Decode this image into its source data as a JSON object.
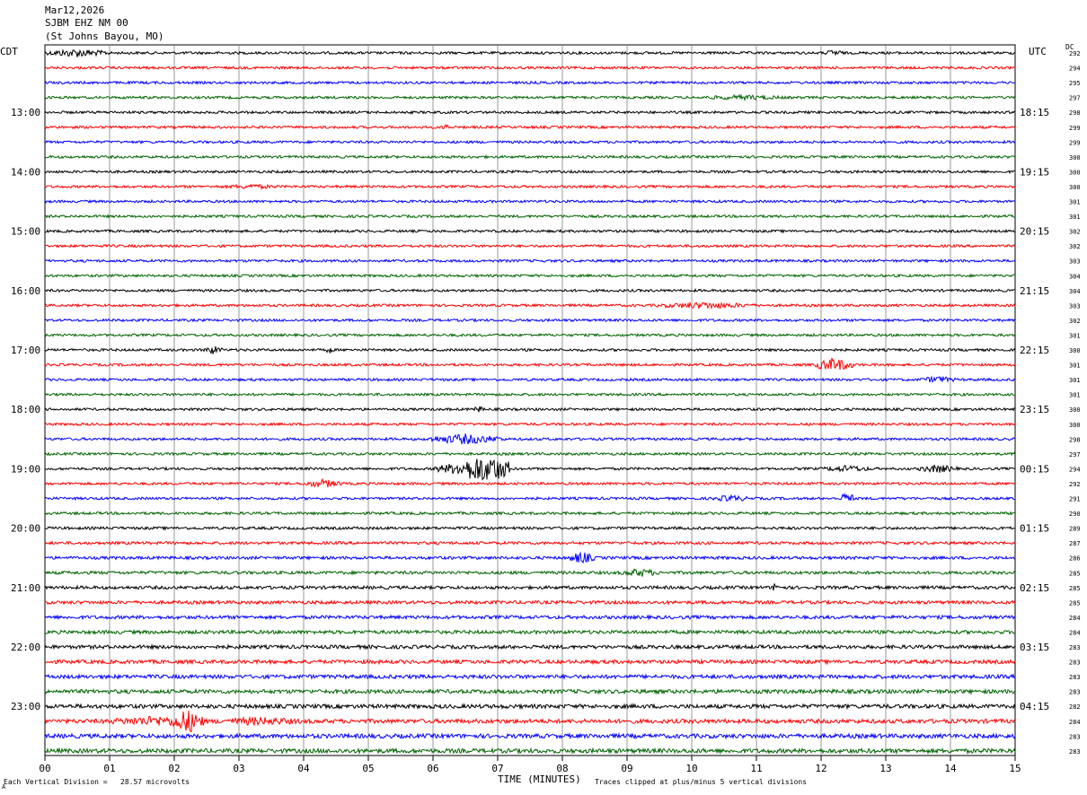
{
  "header": {
    "line1": "Mar12,2026",
    "line2": "SJBM EHZ NM 00",
    "line3": "(St Johns Bayou, MO)"
  },
  "left_axis_label": "CDT",
  "right_axis_label": "UTC",
  "dc_label": "DC",
  "footer": {
    "scale_note": "Each Vertical Division =   28.57 microvolts",
    "xlabel": "TIME (MINUTES)",
    "clip_note": "Traces clipped at plus/minus 5 vertical divisions",
    "mark": "A"
  },
  "colors": {
    "trace_cycle": [
      "#000000",
      "#ff0000",
      "#0000ff",
      "#006400"
    ],
    "grid": "#808080"
  },
  "chart_data": {
    "type": "line",
    "title": "",
    "xlabel": "TIME (MINUTES)",
    "xlim": [
      0,
      15
    ],
    "x_tick_labels": [
      "00",
      "01",
      "02",
      "03",
      "04",
      "05",
      "06",
      "07",
      "08",
      "09",
      "10",
      "11",
      "12",
      "13",
      "14",
      "15"
    ],
    "trace_count": 48,
    "trace_interval_minutes": 15,
    "left_hour_labels": [
      "13:00",
      "14:00",
      "15:00",
      "16:00",
      "17:00",
      "18:00",
      "19:00",
      "20:00",
      "21:00",
      "22:00",
      "23:00"
    ],
    "right_hour_labels": [
      "18:15",
      "19:15",
      "20:15",
      "21:15",
      "22:15",
      "23:15",
      "00:15",
      "01:15",
      "02:15",
      "03:15",
      "04:15"
    ],
    "dc_offsets": [
      "292",
      "294",
      "295",
      "297",
      "298",
      "299",
      "299",
      "300",
      "300",
      "300",
      "301",
      "301",
      "302",
      "302",
      "303",
      "304",
      "304",
      "303",
      "302",
      "301",
      "300",
      "301",
      "301",
      "301",
      "300",
      "300",
      "298",
      "297",
      "294",
      "292",
      "291",
      "290",
      "289",
      "287",
      "286",
      "285",
      "285",
      "285",
      "284",
      "284",
      "283",
      "283",
      "283",
      "283",
      "282",
      "284",
      "283",
      "283"
    ],
    "events": [
      {
        "trace": 0,
        "minute": 0.5,
        "width": 0.5,
        "amp": 5
      },
      {
        "trace": 0,
        "minute": 12.2,
        "width": 0.15,
        "amp": 4
      },
      {
        "trace": 3,
        "minute": 10.8,
        "width": 0.8,
        "amp": 3
      },
      {
        "trace": 5,
        "minute": 6.2,
        "width": 0.05,
        "amp": 5
      },
      {
        "trace": 9,
        "minute": 3.2,
        "width": 0.5,
        "amp": 3
      },
      {
        "trace": 17,
        "minute": 10.2,
        "width": 0.8,
        "amp": 4
      },
      {
        "trace": 20,
        "minute": 2.6,
        "width": 0.15,
        "amp": 5
      },
      {
        "trace": 20,
        "minute": 4.4,
        "width": 0.05,
        "amp": 5
      },
      {
        "trace": 21,
        "minute": 12.2,
        "width": 0.3,
        "amp": 8
      },
      {
        "trace": 22,
        "minute": 13.8,
        "width": 0.3,
        "amp": 4
      },
      {
        "trace": 24,
        "minute": 6.7,
        "width": 0.1,
        "amp": 4
      },
      {
        "trace": 26,
        "minute": 6.5,
        "width": 0.6,
        "amp": 6
      },
      {
        "trace": 28,
        "minute": 6.8,
        "width": 0.4,
        "amp": 18
      },
      {
        "trace": 28,
        "minute": 6.4,
        "width": 0.4,
        "amp": 7
      },
      {
        "trace": 28,
        "minute": 12.4,
        "width": 0.4,
        "amp": 4
      },
      {
        "trace": 28,
        "minute": 13.8,
        "width": 0.3,
        "amp": 5
      },
      {
        "trace": 29,
        "minute": 4.3,
        "width": 0.3,
        "amp": 5
      },
      {
        "trace": 30,
        "minute": 12.4,
        "width": 0.1,
        "amp": 8
      },
      {
        "trace": 30,
        "minute": 10.6,
        "width": 0.3,
        "amp": 4
      },
      {
        "trace": 34,
        "minute": 8.3,
        "width": 0.2,
        "amp": 7
      },
      {
        "trace": 35,
        "minute": 9.2,
        "width": 0.3,
        "amp": 5
      },
      {
        "trace": 36,
        "minute": 11.3,
        "width": 0.05,
        "amp": 8
      },
      {
        "trace": 45,
        "minute": 2.2,
        "width": 0.25,
        "amp": 14
      },
      {
        "trace": 45,
        "minute": 1.7,
        "width": 0.8,
        "amp": 6
      },
      {
        "trace": 45,
        "minute": 3.3,
        "width": 0.8,
        "amp": 5
      }
    ]
  }
}
